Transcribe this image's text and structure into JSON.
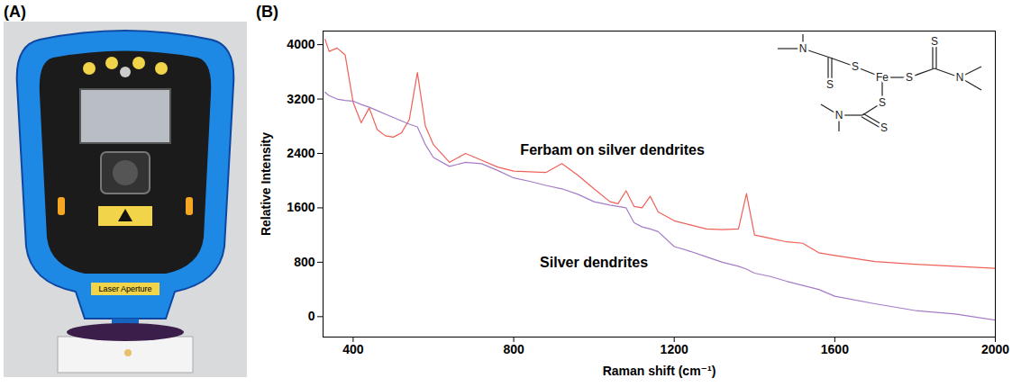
{
  "panel_labels": [
    "(A)",
    "(B)"
  ],
  "photo": {
    "text": "Laser Aperture"
  },
  "chart_data": {
    "type": "line",
    "x_label": "Raman shift (cm⁻¹)",
    "y_label": "Relative Intensity",
    "x": [
      330,
      340,
      360,
      380,
      400,
      420,
      440,
      460,
      480,
      500,
      520,
      540,
      560,
      580,
      600,
      640,
      680,
      720,
      760,
      800,
      840,
      880,
      920,
      960,
      1000,
      1040,
      1060,
      1080,
      1100,
      1120,
      1140,
      1160,
      1200,
      1240,
      1280,
      1320,
      1360,
      1380,
      1400,
      1440,
      1480,
      1520,
      1560,
      1600,
      1700,
      1800,
      1900,
      2000
    ],
    "series": [
      {
        "name": "Ferbam on silver dendrites",
        "color": "#f0605a",
        "values": [
          4080,
          3900,
          3950,
          3850,
          3150,
          2850,
          3070,
          2750,
          2660,
          2640,
          2700,
          2900,
          3590,
          2800,
          2530,
          2270,
          2400,
          2300,
          2200,
          2140,
          2130,
          2120,
          2250,
          2080,
          1880,
          1690,
          1660,
          1850,
          1620,
          1600,
          1770,
          1540,
          1410,
          1350,
          1290,
          1280,
          1290,
          1810,
          1200,
          1150,
          1100,
          1080,
          940,
          900,
          810,
          770,
          740,
          710
        ]
      },
      {
        "name": "Silver dendrites",
        "color": "#a57cc8",
        "values": [
          3300,
          3250,
          3200,
          3180,
          3170,
          3120,
          3080,
          3030,
          2980,
          2930,
          2880,
          2830,
          2790,
          2530,
          2340,
          2210,
          2270,
          2250,
          2150,
          2040,
          1990,
          1930,
          1880,
          1800,
          1690,
          1640,
          1620,
          1600,
          1380,
          1320,
          1290,
          1250,
          1030,
          960,
          880,
          800,
          740,
          700,
          640,
          590,
          520,
          460,
          400,
          300,
          190,
          90,
          40,
          -50
        ]
      }
    ],
    "xlim": [
      325,
      2000
    ],
    "xticks": [
      400,
      800,
      1200,
      1600,
      2000
    ],
    "ylim": [
      -300,
      4200
    ],
    "yticks": [
      0,
      800,
      1600,
      2400,
      3200,
      4000
    ],
    "annotations": [
      {
        "text": "Ferbam on silver dendrites",
        "x": 1046,
        "y": 2450
      },
      {
        "text": "Silver dendrites",
        "x": 1000,
        "y": 800
      }
    ],
    "structure": {
      "metal": "Fe",
      "sulfur": "S",
      "nitrogen": "N"
    }
  }
}
